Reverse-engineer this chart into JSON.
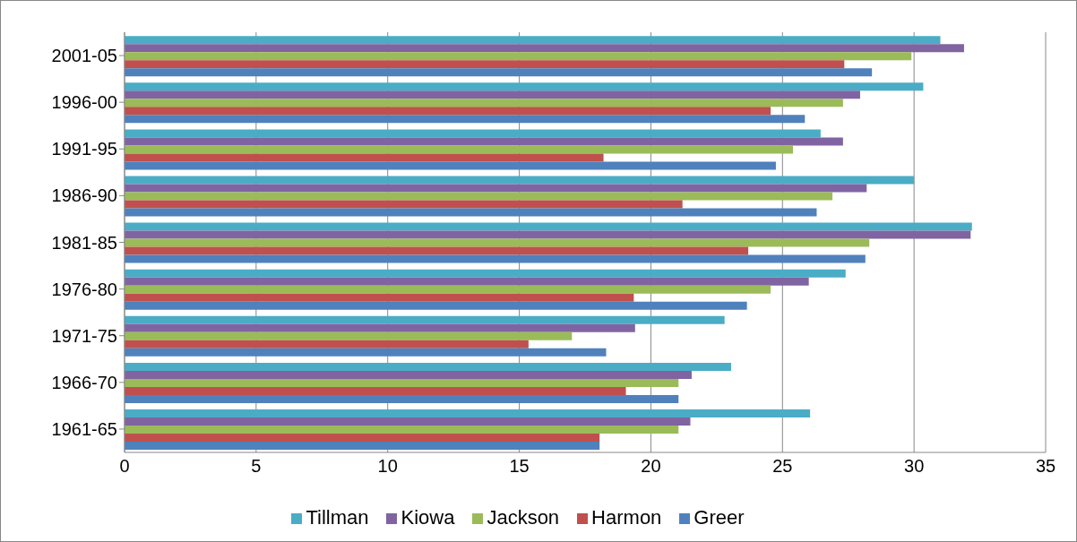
{
  "chart_data": {
    "type": "bar",
    "orientation": "horizontal",
    "categories": [
      "2001-05",
      "1996-00",
      "1991-95",
      "1986-90",
      "1981-85",
      "1976-80",
      "1971-75",
      "1966-70",
      "1961-65"
    ],
    "series": [
      {
        "name": "Tillman",
        "color": "#4bacc6",
        "values": [
          31.0,
          30.35,
          26.45,
          30.0,
          32.2,
          27.4,
          22.8,
          23.05,
          26.05
        ]
      },
      {
        "name": "Kiowa",
        "color": "#8064a2",
        "values": [
          31.9,
          27.95,
          27.3,
          28.2,
          32.15,
          26.0,
          19.4,
          21.55,
          21.5
        ]
      },
      {
        "name": "Jackson",
        "color": "#9bbb59",
        "values": [
          29.9,
          27.3,
          25.4,
          26.9,
          28.3,
          24.55,
          17.0,
          21.05,
          21.05
        ]
      },
      {
        "name": "Harmon",
        "color": "#c0504d",
        "values": [
          27.35,
          24.55,
          18.2,
          21.2,
          23.7,
          19.35,
          15.35,
          19.05,
          18.05
        ]
      },
      {
        "name": "Greer",
        "color": "#4f81bd",
        "values": [
          28.4,
          25.85,
          24.75,
          26.3,
          28.15,
          23.65,
          18.3,
          21.05,
          18.05
        ]
      }
    ],
    "xlim": [
      0,
      35
    ],
    "xticks": [
      0,
      5,
      10,
      15,
      20,
      25,
      30,
      35
    ],
    "grid": "x",
    "legend": "bottom"
  }
}
